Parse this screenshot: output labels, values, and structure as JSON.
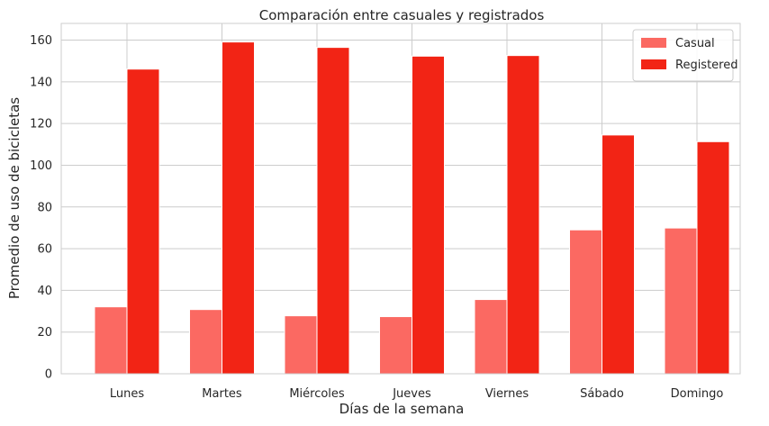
{
  "chart_data": {
    "type": "bar",
    "title": "Comparación entre casuales y registrados",
    "xlabel": "Días de la semana",
    "ylabel": "Promedio de uso de bicicletas",
    "categories": [
      "Lunes",
      "Martes",
      "Miércoles",
      "Jueves",
      "Viernes",
      "Sábado",
      "Domingo"
    ],
    "series": [
      {
        "name": "Casual",
        "color": "#fb6962",
        "values": [
          32.1,
          30.8,
          27.8,
          27.4,
          35.6,
          69.0,
          69.9
        ]
      },
      {
        "name": "Registered",
        "color": "#f22415",
        "values": [
          146.1,
          159.1,
          156.5,
          152.3,
          152.6,
          114.5,
          111.3
        ]
      }
    ],
    "ylim": [
      0,
      168
    ],
    "yticks": [
      0,
      20,
      40,
      60,
      80,
      100,
      120,
      140,
      160
    ],
    "grid": true,
    "legend_position": "top-right"
  }
}
